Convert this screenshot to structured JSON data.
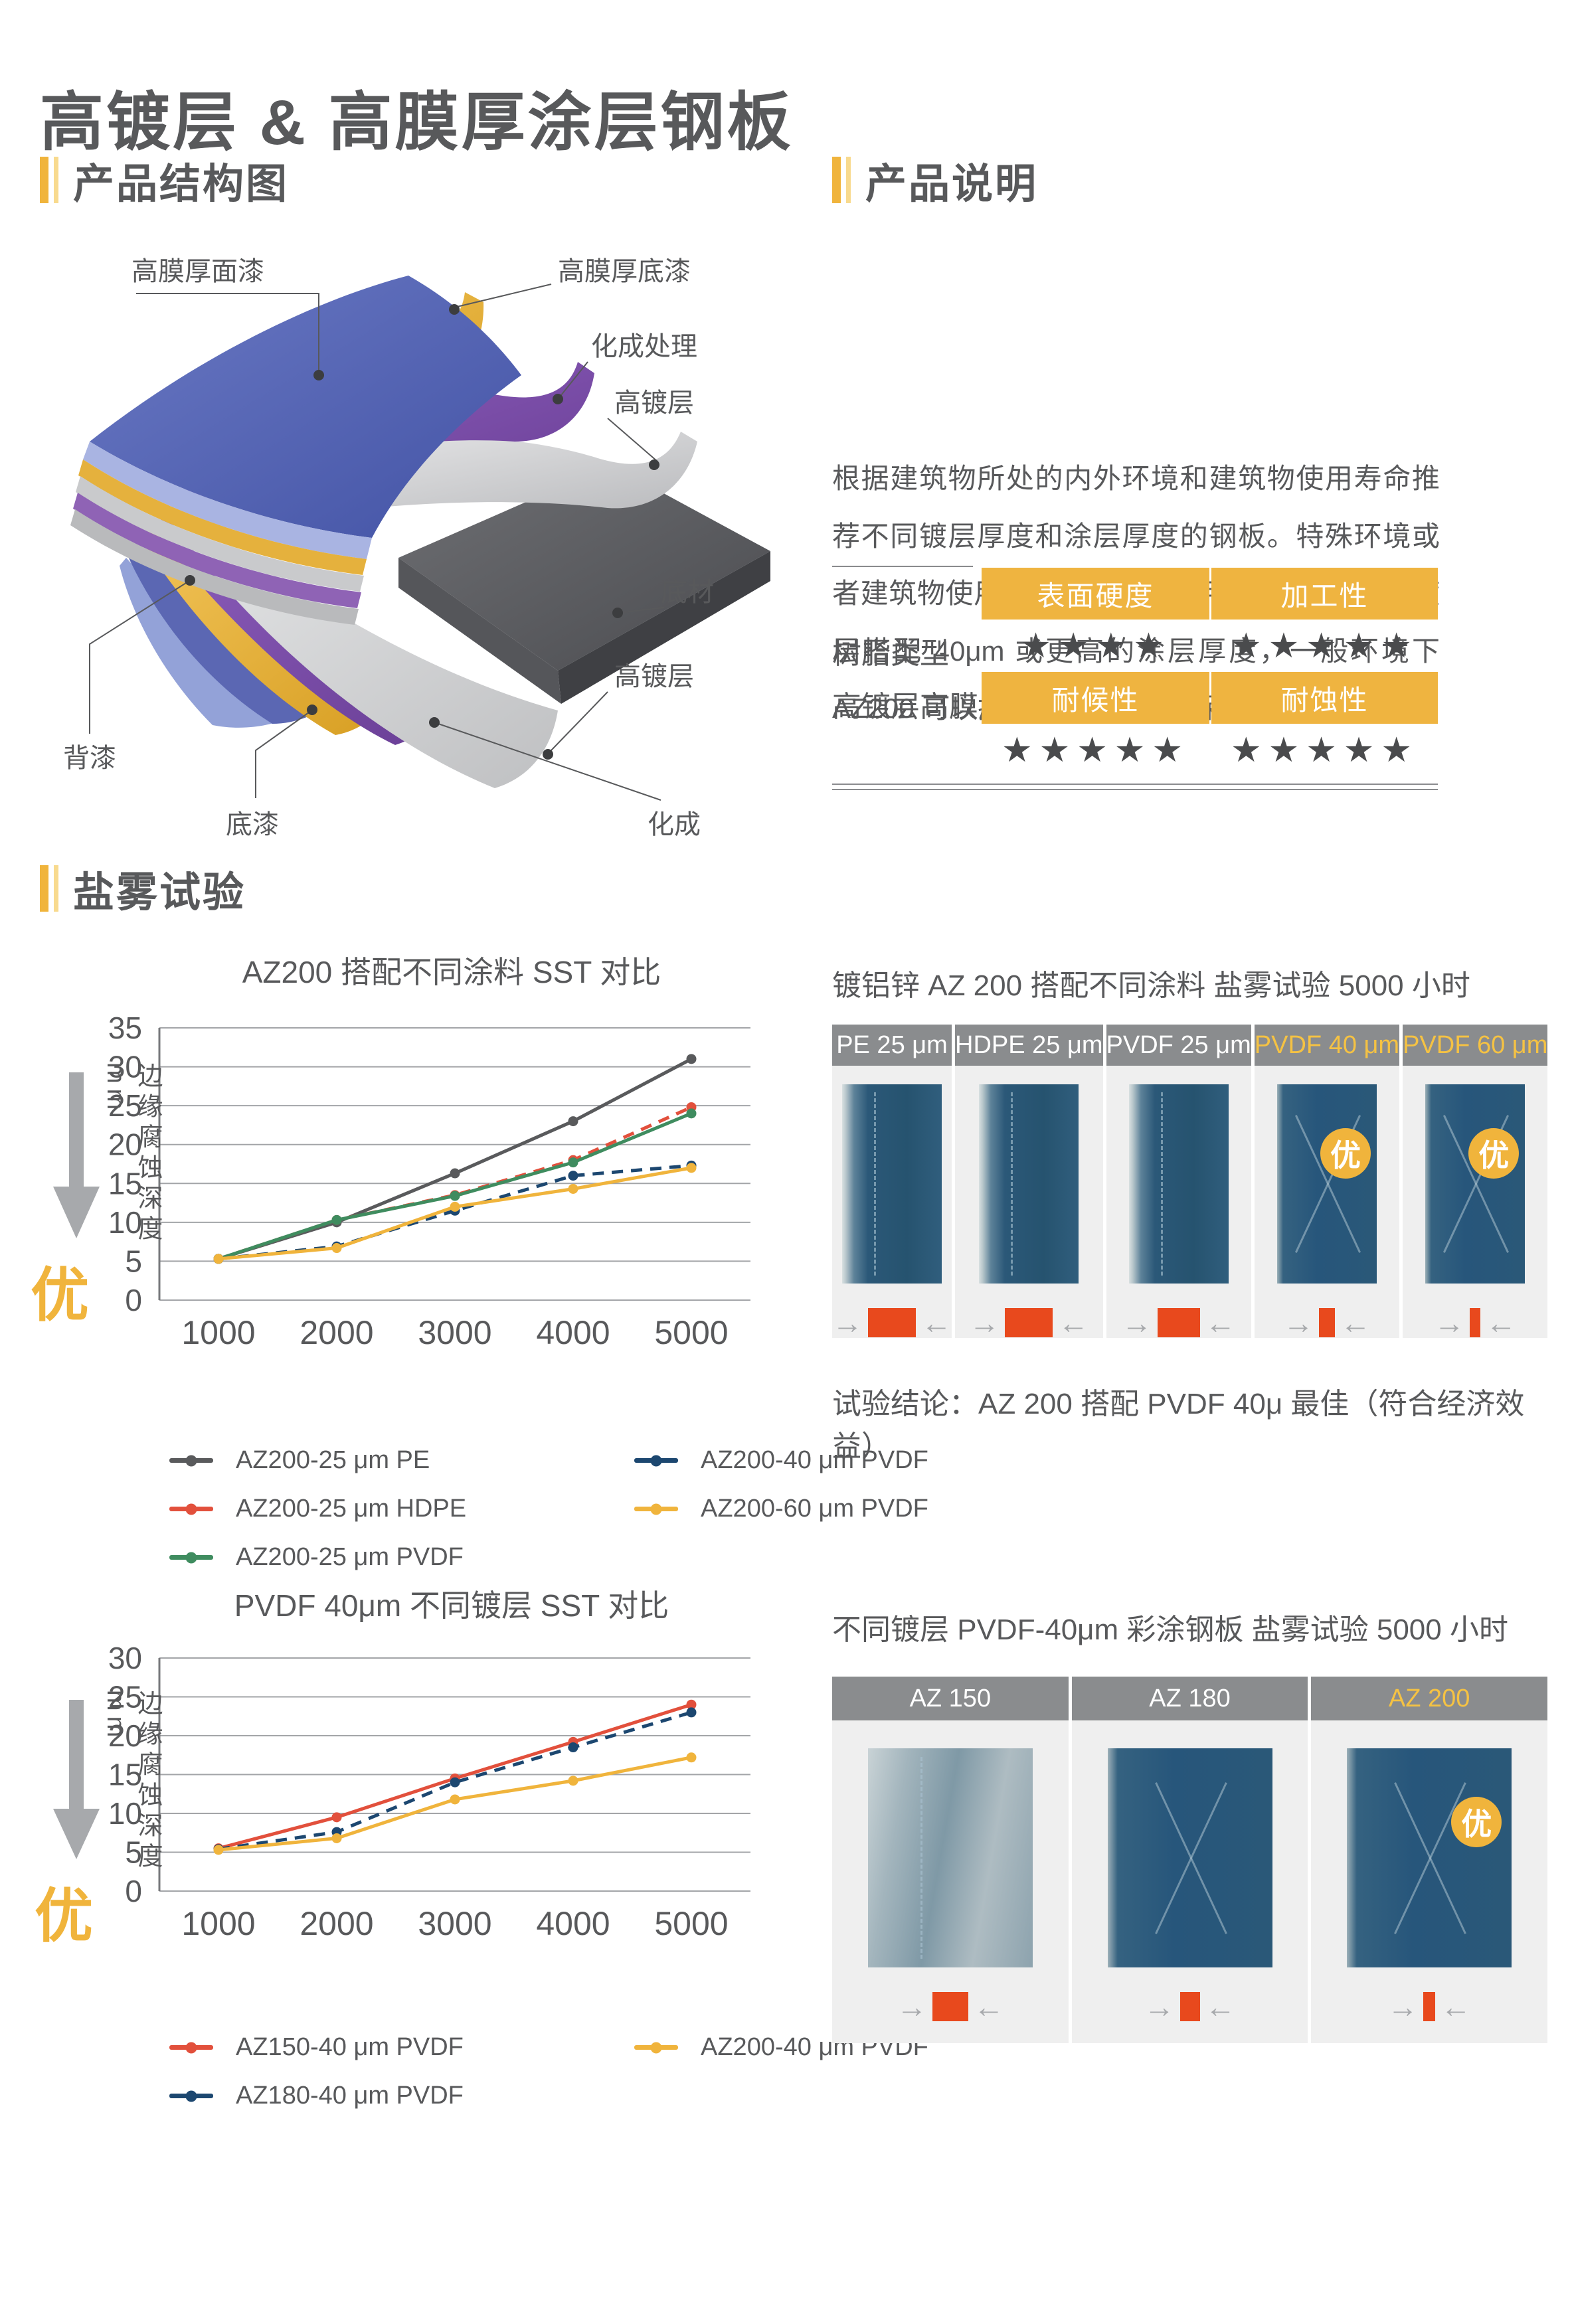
{
  "page_title": "高镀层 & 高膜厚涂层钢板",
  "sections": {
    "structure": {
      "heading": "产品结构图"
    },
    "description": {
      "heading": "产品说明",
      "body": "根据建筑物所处的内外环境和建筑物使用寿命推荐不同镀层厚度和涂层厚度的钢板。特殊环境或者建筑物使用寿命较长可以使用 AZ200 以上的镀层搭配 40μm 或更高的涂层厚度，一般环境下 AZ200 可以提供 30 年的质量保证。"
    },
    "salt_spray": {
      "heading": "盐雾试验"
    }
  },
  "diagram": {
    "labels": [
      {
        "text": "高膜厚面漆"
      },
      {
        "text": "高膜厚底漆"
      },
      {
        "text": "化成处理"
      },
      {
        "text": "高镀层"
      },
      {
        "text": "底材"
      },
      {
        "text": "高镀层"
      },
      {
        "text": "背漆"
      },
      {
        "text": "底漆"
      },
      {
        "text": "化成"
      }
    ]
  },
  "rating_table": {
    "row_labels": [
      "树脂类型",
      "高镀层高膜厚"
    ],
    "cells": [
      {
        "header": "表面硬度",
        "stars": 4
      },
      {
        "header": "加工性",
        "stars": 5
      },
      {
        "header": "耐候性",
        "stars": 5
      },
      {
        "header": "耐蚀性",
        "stars": 5
      }
    ]
  },
  "chart_data": [
    {
      "type": "line",
      "title": "AZ200 搭配不同涂料  SST 对比",
      "x": [
        1000,
        2000,
        3000,
        4000,
        5000
      ],
      "xlabel": "",
      "ylabel": "边缘腐蚀深度 mm",
      "better_label": "优",
      "ylim": [
        0,
        35
      ],
      "ytick_step": 5,
      "grid": true,
      "legend_position": "bottom",
      "series": [
        {
          "name": "AZ200-25 μm  PE",
          "color": "#595a5c",
          "dashed": false,
          "values": [
            5.3,
            10.0,
            16.3,
            23.0,
            31.0
          ]
        },
        {
          "name": "AZ200-25 μm  HDPE",
          "color": "#e2503c",
          "dashed": true,
          "values": [
            5.3,
            10.3,
            13.5,
            18.0,
            24.8
          ]
        },
        {
          "name": "AZ200-25 μm  PVDF",
          "color": "#3f8c5f",
          "dashed": false,
          "values": [
            5.3,
            10.3,
            13.4,
            17.7,
            24.0
          ]
        },
        {
          "name": "AZ200-40 μm  PVDF",
          "color": "#1c4770",
          "dashed": true,
          "values": [
            5.3,
            6.9,
            11.5,
            16.0,
            17.3
          ]
        },
        {
          "name": "AZ200-60 μm  PVDF",
          "color": "#f0b43c",
          "dashed": false,
          "values": [
            5.3,
            6.7,
            12.0,
            14.3,
            17.0
          ]
        }
      ],
      "legend_columns": [
        [
          0,
          1,
          2
        ],
        [
          3,
          4
        ]
      ]
    },
    {
      "type": "line",
      "title": "PVDF 40μm 不同镀层  SST 对比",
      "x": [
        1000,
        2000,
        3000,
        4000,
        5000
      ],
      "xlabel": "",
      "ylabel": "边缘腐蚀深度 mm",
      "better_label": "优",
      "ylim": [
        0,
        30
      ],
      "ytick_step": 5,
      "grid": true,
      "legend_position": "bottom",
      "series": [
        {
          "name": "AZ150-40 μm  PVDF",
          "color": "#e2503c",
          "dashed": false,
          "values": [
            5.5,
            9.5,
            14.5,
            19.2,
            24.0
          ]
        },
        {
          "name": "AZ180-40 μm  PVDF",
          "color": "#1c4770",
          "dashed": true,
          "values": [
            5.4,
            7.6,
            14.0,
            18.5,
            23.0
          ]
        },
        {
          "name": "AZ200-40 μm  PVDF",
          "color": "#f0b43c",
          "dashed": false,
          "values": [
            5.3,
            6.8,
            11.8,
            14.2,
            17.2
          ]
        }
      ],
      "legend_columns": [
        [
          0,
          1
        ],
        [
          2
        ]
      ]
    }
  ],
  "panels": [
    {
      "title": "镀铝锌 AZ 200 搭配不同涂料  盐雾试验 5000 小时",
      "badge_label": "优",
      "conclusion": "试验结论：AZ 200 搭配 PVDF 40μ 最佳（符合经济效益）",
      "columns": [
        {
          "header": "PE 25 μm",
          "highlight": false,
          "best": false,
          "appearance": "edge-corrosion",
          "corrosion_marker_width": 72
        },
        {
          "header": "HDPE 25 μm",
          "highlight": false,
          "best": false,
          "appearance": "edge-corrosion",
          "corrosion_marker_width": 72
        },
        {
          "header": "PVDF 25 μm",
          "highlight": false,
          "best": false,
          "appearance": "edge-corrosion",
          "corrosion_marker_width": 64
        },
        {
          "header": "PVDF 40 μm",
          "highlight": true,
          "best": true,
          "appearance": "x-scribe",
          "corrosion_marker_width": 24
        },
        {
          "header": "PVDF 60 μm",
          "highlight": true,
          "best": true,
          "appearance": "x-scribe",
          "corrosion_marker_width": 16
        }
      ]
    },
    {
      "title": "不同镀层 PVDF-40μm 彩涂钢板 盐雾试验 5000 小时",
      "badge_label": "优",
      "conclusion": "",
      "columns": [
        {
          "header": "AZ 150",
          "highlight": false,
          "best": false,
          "appearance": "light-corrosion",
          "corrosion_marker_width": 54
        },
        {
          "header": "AZ 180",
          "highlight": false,
          "best": false,
          "appearance": "x-scribe",
          "corrosion_marker_width": 30
        },
        {
          "header": "AZ 200",
          "highlight": true,
          "best": true,
          "appearance": "x-scribe",
          "corrosion_marker_width": 18
        }
      ]
    }
  ],
  "colors": {
    "accent_yellow": "#f0b43c",
    "light_yellow_bar": "#f8da8e",
    "text_gray": "#58595b",
    "star_gray": "#4a4b4d",
    "panel_header_gray": "#8a8c8e",
    "panel_body_gray": "#efefef",
    "corrosion_marker_red": "#e8491d",
    "sample_steel_blue": "#27567b"
  }
}
